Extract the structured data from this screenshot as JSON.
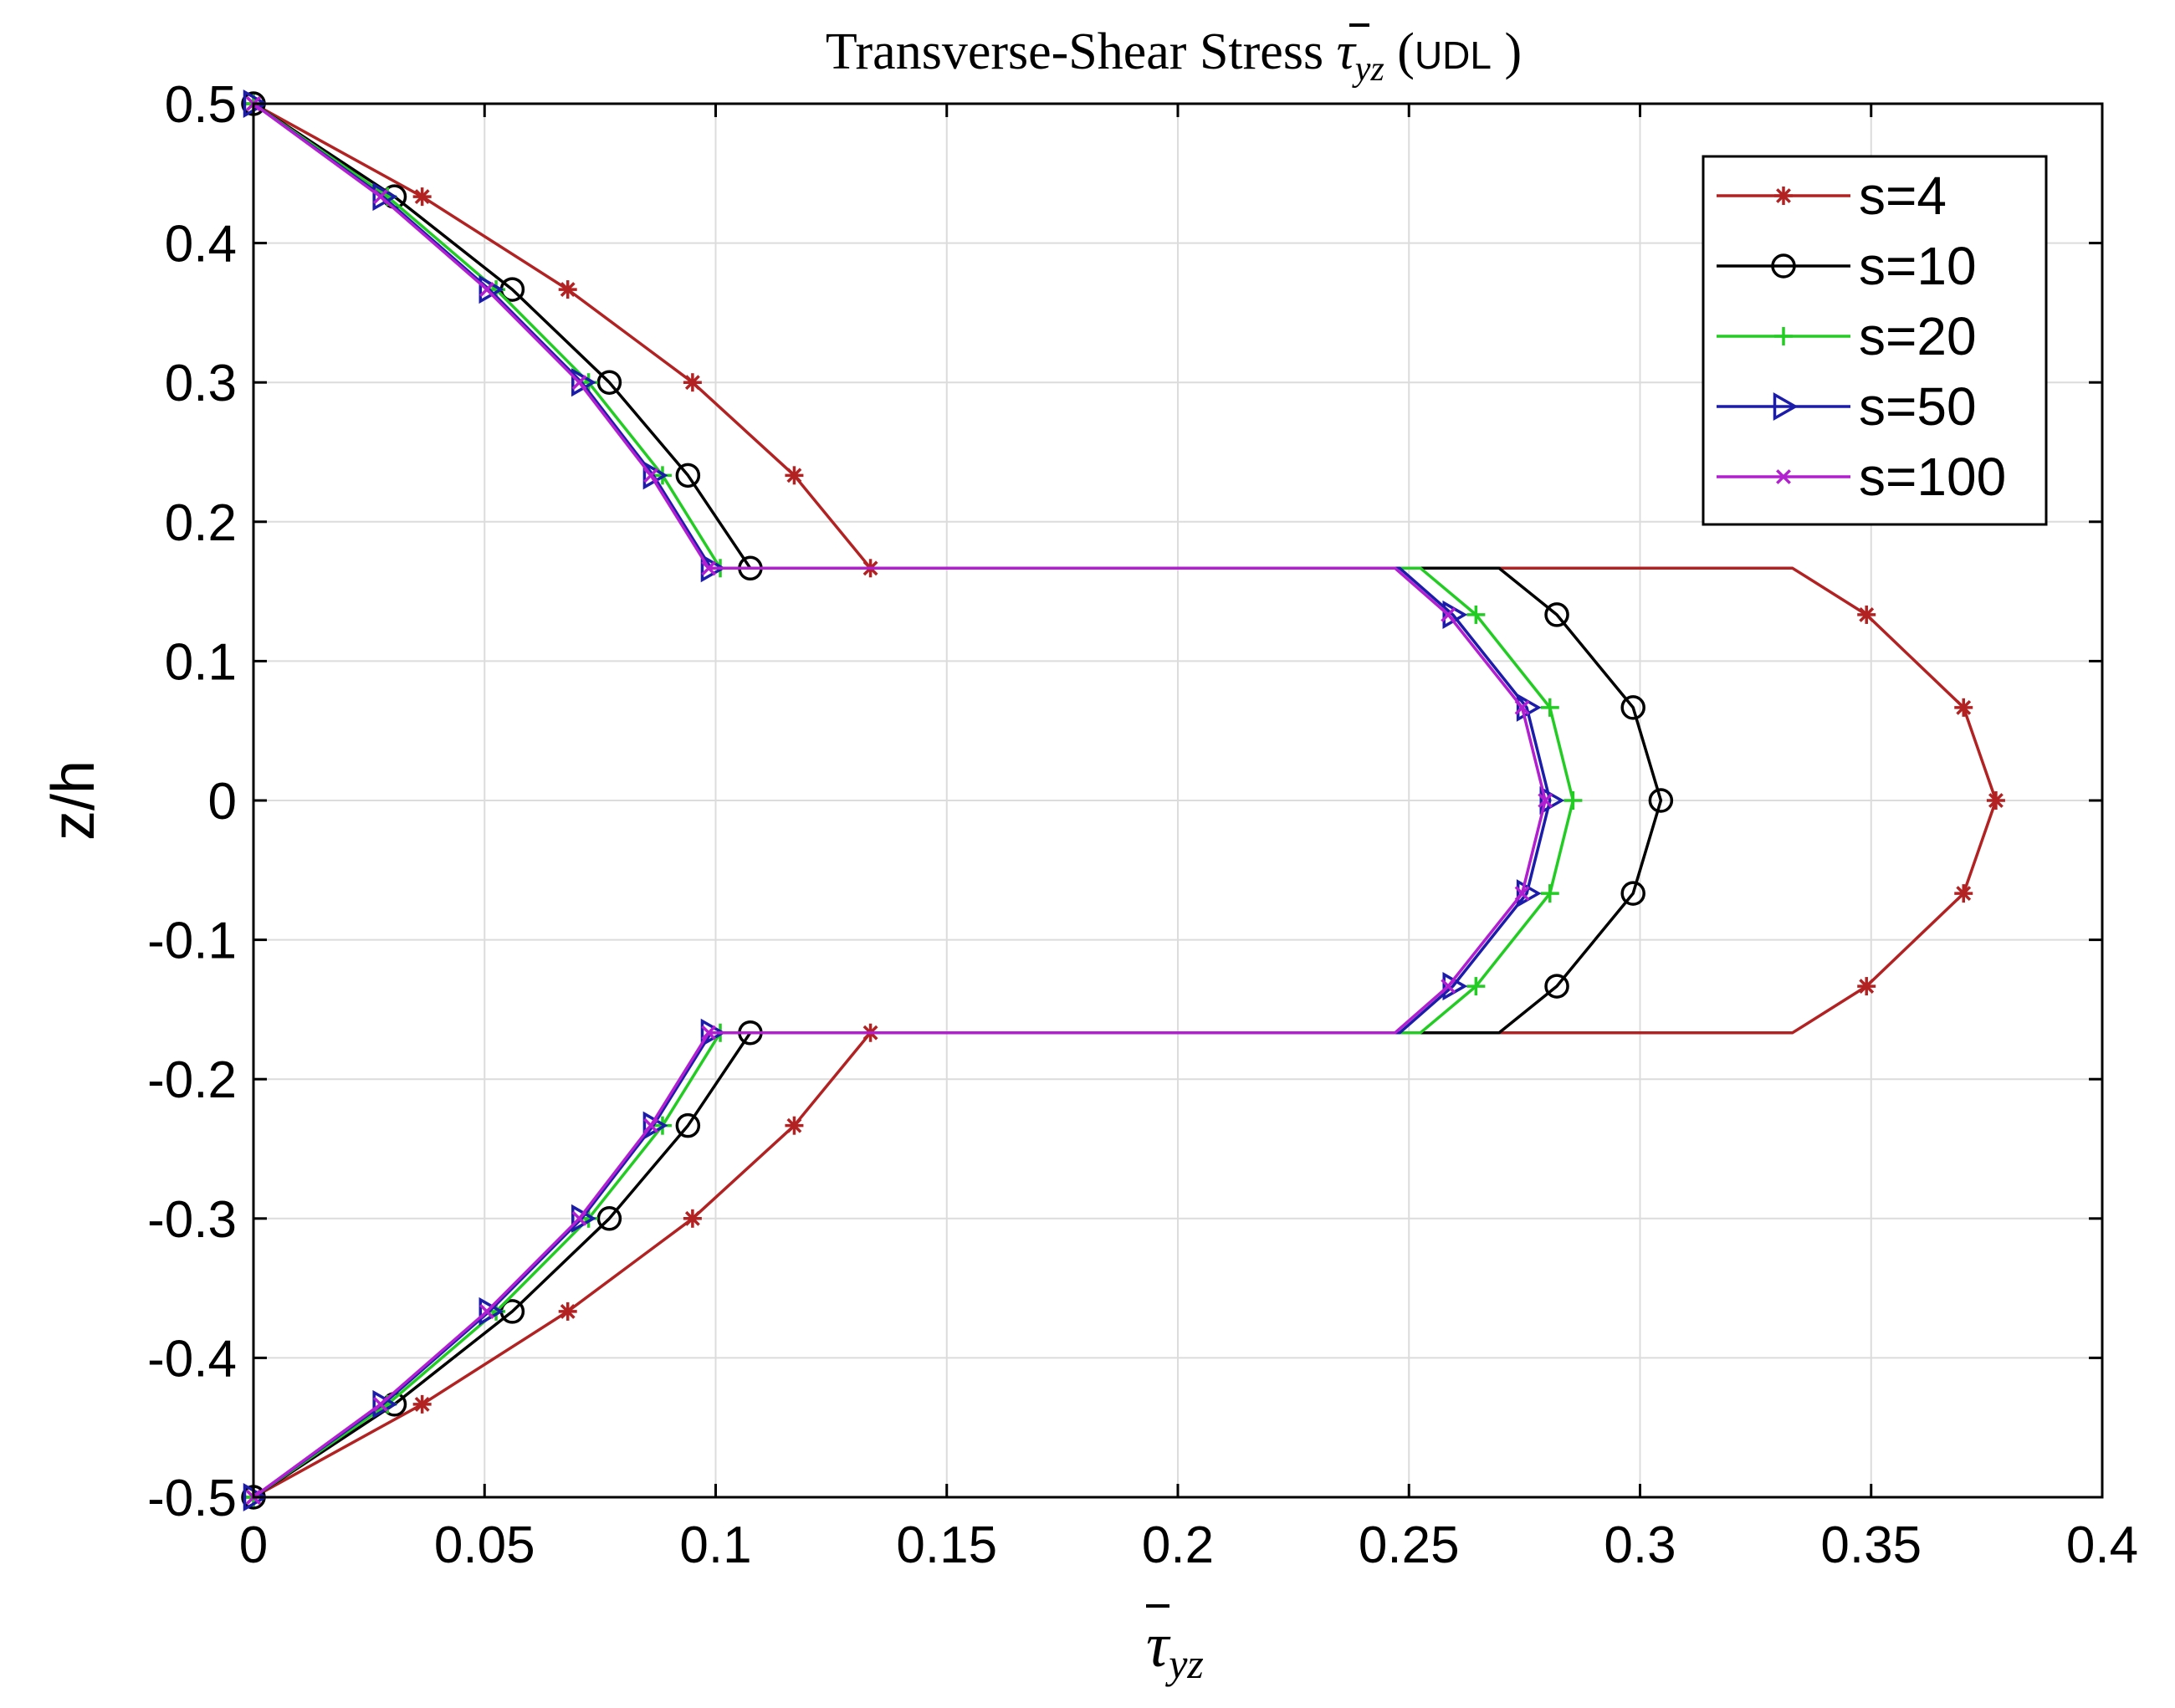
{
  "chart_data": {
    "type": "line",
    "title": {
      "main": "Transverse-Shear Stress ",
      "symbol": "τ",
      "subscript": "yz",
      "suffix_open": " (",
      "suffix_text": "UDL",
      "suffix_close": " )"
    },
    "xlabel": {
      "symbol": "τ",
      "subscript": "yz"
    },
    "ylabel": "z/h",
    "xlim": [
      0,
      0.4
    ],
    "ylim": [
      -0.5,
      0.5
    ],
    "x_ticks": [
      0,
      0.05,
      0.1,
      0.15,
      0.2,
      0.25,
      0.3,
      0.35,
      0.4
    ],
    "x_tick_labels": [
      "0",
      "0.05",
      "0.1",
      "0.15",
      "0.2",
      "0.25",
      "0.3",
      "0.35",
      "0.4"
    ],
    "y_ticks": [
      -0.5,
      -0.4,
      -0.3,
      -0.2,
      -0.1,
      0,
      0.1,
      0.2,
      0.3,
      0.4,
      0.5
    ],
    "y_tick_labels": [
      "-0.5",
      "-0.4",
      "-0.3",
      "-0.2",
      "-0.1",
      "0",
      "0.1",
      "0.2",
      "0.3",
      "0.4",
      "0.5"
    ],
    "grid": true,
    "legend_position": "top-right",
    "series": [
      {
        "name": "s=4",
        "color": "#b22222",
        "marker": "asterisk",
        "x": [
          0,
          0.0365,
          0.068,
          0.095,
          0.117,
          0.1335,
          0.333,
          0.349,
          0.37,
          0.377,
          0.37,
          0.349,
          0.333,
          0.1335,
          0.117,
          0.095,
          0.068,
          0.0365,
          0
        ],
        "y": [
          0.5,
          0.4333,
          0.3667,
          0.3,
          0.2333,
          0.1667,
          0.1667,
          0.1333,
          0.0667,
          0,
          -0.0667,
          -0.1333,
          -0.1667,
          -0.1667,
          -0.2333,
          -0.3,
          -0.3667,
          -0.4333,
          -0.5
        ],
        "marker_idx": [
          0,
          1,
          2,
          3,
          4,
          5,
          7,
          8,
          9,
          10,
          11,
          13,
          14,
          15,
          16,
          17,
          18
        ]
      },
      {
        "name": "s=10",
        "color": "#000000",
        "marker": "circle",
        "x": [
          0,
          0.0305,
          0.056,
          0.077,
          0.094,
          0.1075,
          0.2695,
          0.282,
          0.2985,
          0.3045,
          0.2985,
          0.282,
          0.2695,
          0.1075,
          0.094,
          0.077,
          0.056,
          0.0305,
          0
        ],
        "y": [
          0.5,
          0.4333,
          0.3667,
          0.3,
          0.2333,
          0.1667,
          0.1667,
          0.1333,
          0.0667,
          0,
          -0.0667,
          -0.1333,
          -0.1667,
          -0.1667,
          -0.2333,
          -0.3,
          -0.3667,
          -0.4333,
          -0.5
        ],
        "marker_idx": [
          0,
          1,
          2,
          3,
          4,
          5,
          7,
          8,
          9,
          10,
          11,
          13,
          14,
          15,
          16,
          17,
          18
        ]
      },
      {
        "name": "s=20",
        "color": "#22cc22",
        "marker": "plus",
        "x": [
          0,
          0.029,
          0.0525,
          0.0725,
          0.0885,
          0.101,
          0.2525,
          0.2645,
          0.2805,
          0.2855,
          0.2805,
          0.2645,
          0.2525,
          0.101,
          0.0885,
          0.0725,
          0.0525,
          0.029,
          0
        ],
        "y": [
          0.5,
          0.4333,
          0.3667,
          0.3,
          0.2333,
          0.1667,
          0.1667,
          0.1333,
          0.0667,
          0,
          -0.0667,
          -0.1333,
          -0.1667,
          -0.1667,
          -0.2333,
          -0.3,
          -0.3667,
          -0.4333,
          -0.5
        ],
        "marker_idx": [
          0,
          1,
          2,
          3,
          4,
          5,
          7,
          8,
          9,
          10,
          11,
          13,
          14,
          15,
          16,
          17,
          18
        ]
      },
      {
        "name": "s=50",
        "color": "#1c1caa",
        "marker": "triangle-right",
        "x": [
          0,
          0.028,
          0.051,
          0.071,
          0.0865,
          0.099,
          0.248,
          0.2595,
          0.2755,
          0.2805,
          0.2755,
          0.2595,
          0.248,
          0.099,
          0.0865,
          0.071,
          0.051,
          0.028,
          0
        ],
        "y": [
          0.5,
          0.4333,
          0.3667,
          0.3,
          0.2333,
          0.1667,
          0.1667,
          0.1333,
          0.0667,
          0,
          -0.0667,
          -0.1333,
          -0.1667,
          -0.1667,
          -0.2333,
          -0.3,
          -0.3667,
          -0.4333,
          -0.5
        ],
        "marker_idx": [
          0,
          1,
          2,
          3,
          4,
          5,
          7,
          8,
          9,
          10,
          11,
          13,
          14,
          15,
          16,
          17,
          18
        ]
      },
      {
        "name": "s=100",
        "color": "#b21fd0",
        "marker": "x",
        "x": [
          0,
          0.0275,
          0.0505,
          0.0705,
          0.086,
          0.0985,
          0.247,
          0.2585,
          0.2745,
          0.2795,
          0.2745,
          0.2585,
          0.247,
          0.0985,
          0.086,
          0.0705,
          0.0505,
          0.0275,
          0
        ],
        "y": [
          0.5,
          0.4333,
          0.3667,
          0.3,
          0.2333,
          0.1667,
          0.1667,
          0.1333,
          0.0667,
          0,
          -0.0667,
          -0.1333,
          -0.1667,
          -0.1667,
          -0.2333,
          -0.3,
          -0.3667,
          -0.4333,
          -0.5
        ],
        "marker_idx": [
          0,
          1,
          2,
          3,
          4,
          5,
          7,
          8,
          9,
          10,
          11,
          13,
          14,
          15,
          16,
          17,
          18
        ]
      }
    ]
  }
}
